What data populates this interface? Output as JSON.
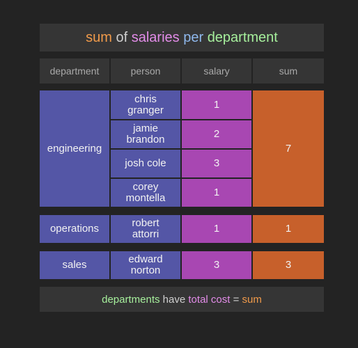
{
  "title": {
    "w1": "sum",
    "w2": " of ",
    "w3": "salaries",
    "w4": " per ",
    "w5": "department",
    "c1": "#f09a4a",
    "c3": "#e28ce8",
    "c5": "#a6ef9c"
  },
  "headers": [
    "department",
    "person",
    "salary",
    "sum"
  ],
  "groups": [
    {
      "department": "engineering",
      "people": [
        {
          "name": [
            "chris",
            "granger"
          ],
          "salary": "1"
        },
        {
          "name": [
            "jamie",
            "brandon"
          ],
          "salary": "2"
        },
        {
          "name": [
            "josh cole"
          ],
          "salary": "3"
        },
        {
          "name": [
            "corey",
            "montella"
          ],
          "salary": "1"
        }
      ],
      "sum": "7"
    },
    {
      "department": "operations",
      "people": [
        {
          "name": [
            "robert",
            "attorri"
          ],
          "salary": "1"
        }
      ],
      "sum": "1"
    },
    {
      "department": "sales",
      "people": [
        {
          "name": [
            "edward",
            "norton"
          ],
          "salary": "3"
        }
      ],
      "sum": "3"
    }
  ],
  "footer": {
    "w1": "departments",
    "w2": " have ",
    "w3": "total cost",
    "w4": " = ",
    "w5": "sum",
    "c1": "#a6ef9c",
    "c3": "#e28ce8",
    "c5": "#f09a4a"
  }
}
